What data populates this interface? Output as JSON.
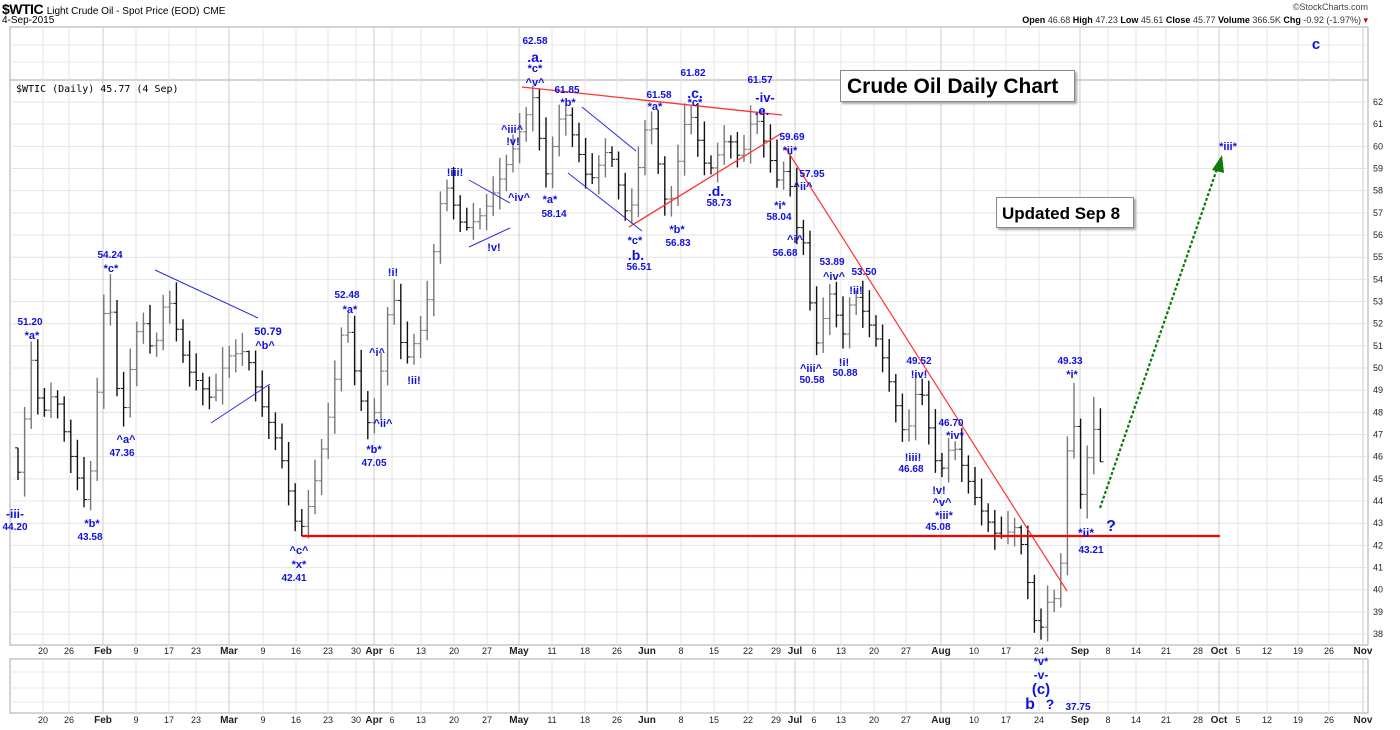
{
  "header": {
    "symbol": "$WTIC",
    "name": "Light Crude Oil - Spot Price (EOD)",
    "exchange": "CME",
    "date": "4-Sep-2015",
    "brand": "©StockCharts.com",
    "open_label": "Open",
    "open": "46.68",
    "high_label": "High",
    "high": "47.23",
    "low_label": "Low",
    "low": "45.61",
    "close_label": "Close",
    "close": "45.77",
    "volume_label": "Volume",
    "volume": "366.5K",
    "chg_label": "Chg",
    "chg": "-0.92 (-1.97%)"
  },
  "legend": "$WTIC (Daily) 45.77 (4 Sep)",
  "title_box": "Crude Oil Daily Chart",
  "updated_box": "Updated Sep 8",
  "colors": {
    "wave": "#1010e0",
    "trend": "#ff0000",
    "channel": "#2020e0",
    "projection": "#0a7a0a"
  },
  "chart_data": {
    "type": "ohlc-bar",
    "title": "$WTIC Light Crude Oil - Spot Price (EOD)",
    "ylim": [
      37.5,
      63
    ],
    "y_ticks": [
      38,
      39,
      40,
      41,
      42,
      43,
      44,
      45,
      46,
      47,
      48,
      49,
      50,
      51,
      52,
      53,
      54,
      55,
      56,
      57,
      58,
      59,
      60,
      61,
      62
    ],
    "x_ticks": [
      "20",
      "26",
      "Feb",
      "9",
      "17",
      "23",
      "Mar",
      "9",
      "16",
      "23",
      "30",
      "Apr",
      "6",
      "13",
      "20",
      "27",
      "May",
      "11",
      "18",
      "26",
      "Jun",
      "8",
      "15",
      "22",
      "29",
      "Jul",
      "6",
      "13",
      "20",
      "27",
      "Aug",
      "10",
      "17",
      "24",
      "Sep",
      "8",
      "14",
      "21",
      "28",
      "Oct",
      "5",
      "12",
      "19",
      "26",
      "Nov"
    ],
    "pivots_bar_index_price": [
      [
        0,
        46.4
      ],
      [
        1,
        44.2
      ],
      [
        2,
        51.2
      ],
      [
        4,
        47.8
      ],
      [
        6,
        49.0
      ],
      [
        8,
        46.5
      ],
      [
        11,
        43.58
      ],
      [
        14,
        54.24
      ],
      [
        16,
        47.36
      ],
      [
        19,
        52.5
      ],
      [
        21,
        50.5
      ],
      [
        23,
        53.5
      ],
      [
        26,
        50.0
      ],
      [
        30,
        48.5
      ],
      [
        32,
        50.5
      ],
      [
        35,
        50.79
      ],
      [
        37,
        48.6
      ],
      [
        40,
        46.5
      ],
      [
        43,
        42.41
      ],
      [
        45,
        44.2
      ],
      [
        48,
        48.5
      ],
      [
        50,
        52.48
      ],
      [
        52,
        49.0
      ],
      [
        54,
        47.05
      ],
      [
        56,
        50.8
      ],
      [
        57,
        54.0
      ],
      [
        59,
        50.2
      ],
      [
        62,
        52.0
      ],
      [
        65,
        58.5
      ],
      [
        68,
        56.2
      ],
      [
        71,
        57.0
      ],
      [
        73,
        58.2
      ],
      [
        75,
        59.5
      ],
      [
        79,
        62.58
      ],
      [
        80,
        58.14
      ],
      [
        83,
        61.85
      ],
      [
        87,
        58.3
      ],
      [
        90,
        60.0
      ],
      [
        93,
        56.51
      ],
      [
        96,
        61.58
      ],
      [
        99,
        56.83
      ],
      [
        102,
        61.82
      ],
      [
        105,
        58.73
      ],
      [
        108,
        60.5
      ],
      [
        110,
        59.3
      ],
      [
        112,
        61.57
      ],
      [
        114,
        59.8
      ],
      [
        116,
        58.04
      ],
      [
        117,
        59.69
      ],
      [
        118,
        56.68
      ],
      [
        120,
        55.3
      ],
      [
        121,
        50.58
      ],
      [
        124,
        53.89
      ],
      [
        125,
        50.88
      ],
      [
        127,
        53.5
      ],
      [
        131,
        51.0
      ],
      [
        135,
        46.68
      ],
      [
        137,
        49.52
      ],
      [
        140,
        45.08
      ],
      [
        142,
        46.7
      ],
      [
        146,
        43.8
      ],
      [
        149,
        42.3
      ],
      [
        152,
        42.9
      ],
      [
        155,
        37.75
      ],
      [
        157,
        40.0
      ],
      [
        158,
        39.2
      ],
      [
        159,
        43.2
      ],
      [
        160,
        49.33
      ],
      [
        161,
        45.4
      ],
      [
        162,
        43.21
      ],
      [
        163,
        48.7
      ],
      [
        164,
        45.77
      ]
    ],
    "trendlines": [
      {
        "name": "upper-triangle-resistance",
        "color": "red",
        "from": [
          "May 1",
          62.58
        ],
        "to": [
          "Jun 29",
          61.3
        ]
      },
      {
        "name": "lower-triangle-support",
        "color": "red",
        "from": [
          "May 28",
          56.4
        ],
        "to": [
          "Jun 29",
          60.6
        ]
      },
      {
        "name": "downtrend",
        "color": "red",
        "from": [
          "Jun 30",
          59.7
        ],
        "to": [
          "Aug 28",
          40.2
        ]
      },
      {
        "name": "support-42.4",
        "color": "red",
        "from": [
          "Mar 17",
          42.41
        ],
        "to": [
          "Oct 2",
          42.41
        ]
      },
      {
        "name": "projection",
        "color": "green-dotted",
        "from": [
          "Sep 8",
          43.8
        ],
        "to": [
          "Oct 2",
          59.7
        ]
      }
    ],
    "annotations": [
      "62.58",
      ".a.",
      "*c*",
      "^v^",
      "61.85",
      "*b*",
      "61.58",
      "*a*",
      "61.82",
      ".c.",
      "*c*",
      "61.57",
      "-iv-",
      ".e.",
      "59.69",
      "*ii*",
      "57.95",
      "^ii^",
      "*i*",
      "58.04",
      "^i^",
      "56.68",
      "53.89",
      "^iv^",
      "53.50",
      "!ii!",
      "^iii^",
      "50.58",
      "!i!",
      "50.88",
      "49.52",
      "!iv!",
      "!iii!",
      "46.68",
      "46.70",
      "*iv*",
      "!v!",
      "^v^",
      "*iii*",
      "45.08",
      "49.33",
      "*i*",
      "*ii*",
      "?",
      "43.21",
      "*v*",
      "-v-",
      "(c)",
      "b",
      "?",
      "37.75",
      "c",
      "*iii*",
      "51.20",
      "*a*",
      "-iii-",
      "44.20",
      "54.24",
      "*c*",
      "^a^",
      "47.36",
      "*b*",
      "43.58",
      "50.79",
      "^b^",
      "^c^",
      "*x*",
      "42.41",
      "52.48",
      "*a*",
      "^i^",
      "^ii^",
      "*b*",
      "47.05",
      "!i!",
      "!ii!",
      "!iii!",
      "!v!",
      "^iii^",
      "!v!",
      "^iv^",
      "*a*",
      "58.14",
      "*c*",
      ".b.",
      "56.51",
      "*b*",
      "56.83",
      ".d.",
      "58.73"
    ]
  }
}
